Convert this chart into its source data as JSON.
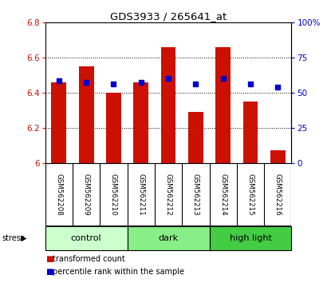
{
  "title": "GDS3933 / 265641_at",
  "samples": [
    "GSM562208",
    "GSM562209",
    "GSM562210",
    "GSM562211",
    "GSM562212",
    "GSM562213",
    "GSM562214",
    "GSM562215",
    "GSM562216"
  ],
  "red_values": [
    6.46,
    6.55,
    6.4,
    6.46,
    6.66,
    6.29,
    6.66,
    6.35,
    6.07
  ],
  "blue_values": [
    6.47,
    6.46,
    6.45,
    6.46,
    6.48,
    6.45,
    6.48,
    6.45,
    6.43
  ],
  "ylim_left": [
    6.0,
    6.8
  ],
  "ylim_right": [
    0,
    100
  ],
  "yticks_left": [
    6.0,
    6.2,
    6.4,
    6.6,
    6.8
  ],
  "yticks_right": [
    0,
    25,
    50,
    75,
    100
  ],
  "ytick_labels_left": [
    "6",
    "6.2",
    "6.4",
    "6.6",
    "6.8"
  ],
  "ytick_labels_right": [
    "0",
    "25",
    "50",
    "75",
    "100%"
  ],
  "bar_color": "#cc1100",
  "square_color": "#0000cc",
  "bar_width": 0.55,
  "bar_bottom": 6.0,
  "groups": [
    {
      "label": "control",
      "start": 0,
      "end": 2,
      "color": "#ccffcc"
    },
    {
      "label": "dark",
      "start": 3,
      "end": 5,
      "color": "#88ee88"
    },
    {
      "label": "high light",
      "start": 6,
      "end": 8,
      "color": "#44cc44"
    }
  ],
  "stress_label": "stress",
  "legend_items": [
    {
      "label": "transformed count",
      "color": "#cc1100"
    },
    {
      "label": "percentile rank within the sample",
      "color": "#0000cc"
    }
  ],
  "tick_color_left": "#cc1100",
  "tick_color_right": "#0000cc",
  "background_plot": "#ffffff",
  "background_label": "#cccccc",
  "title_color": "#000000"
}
